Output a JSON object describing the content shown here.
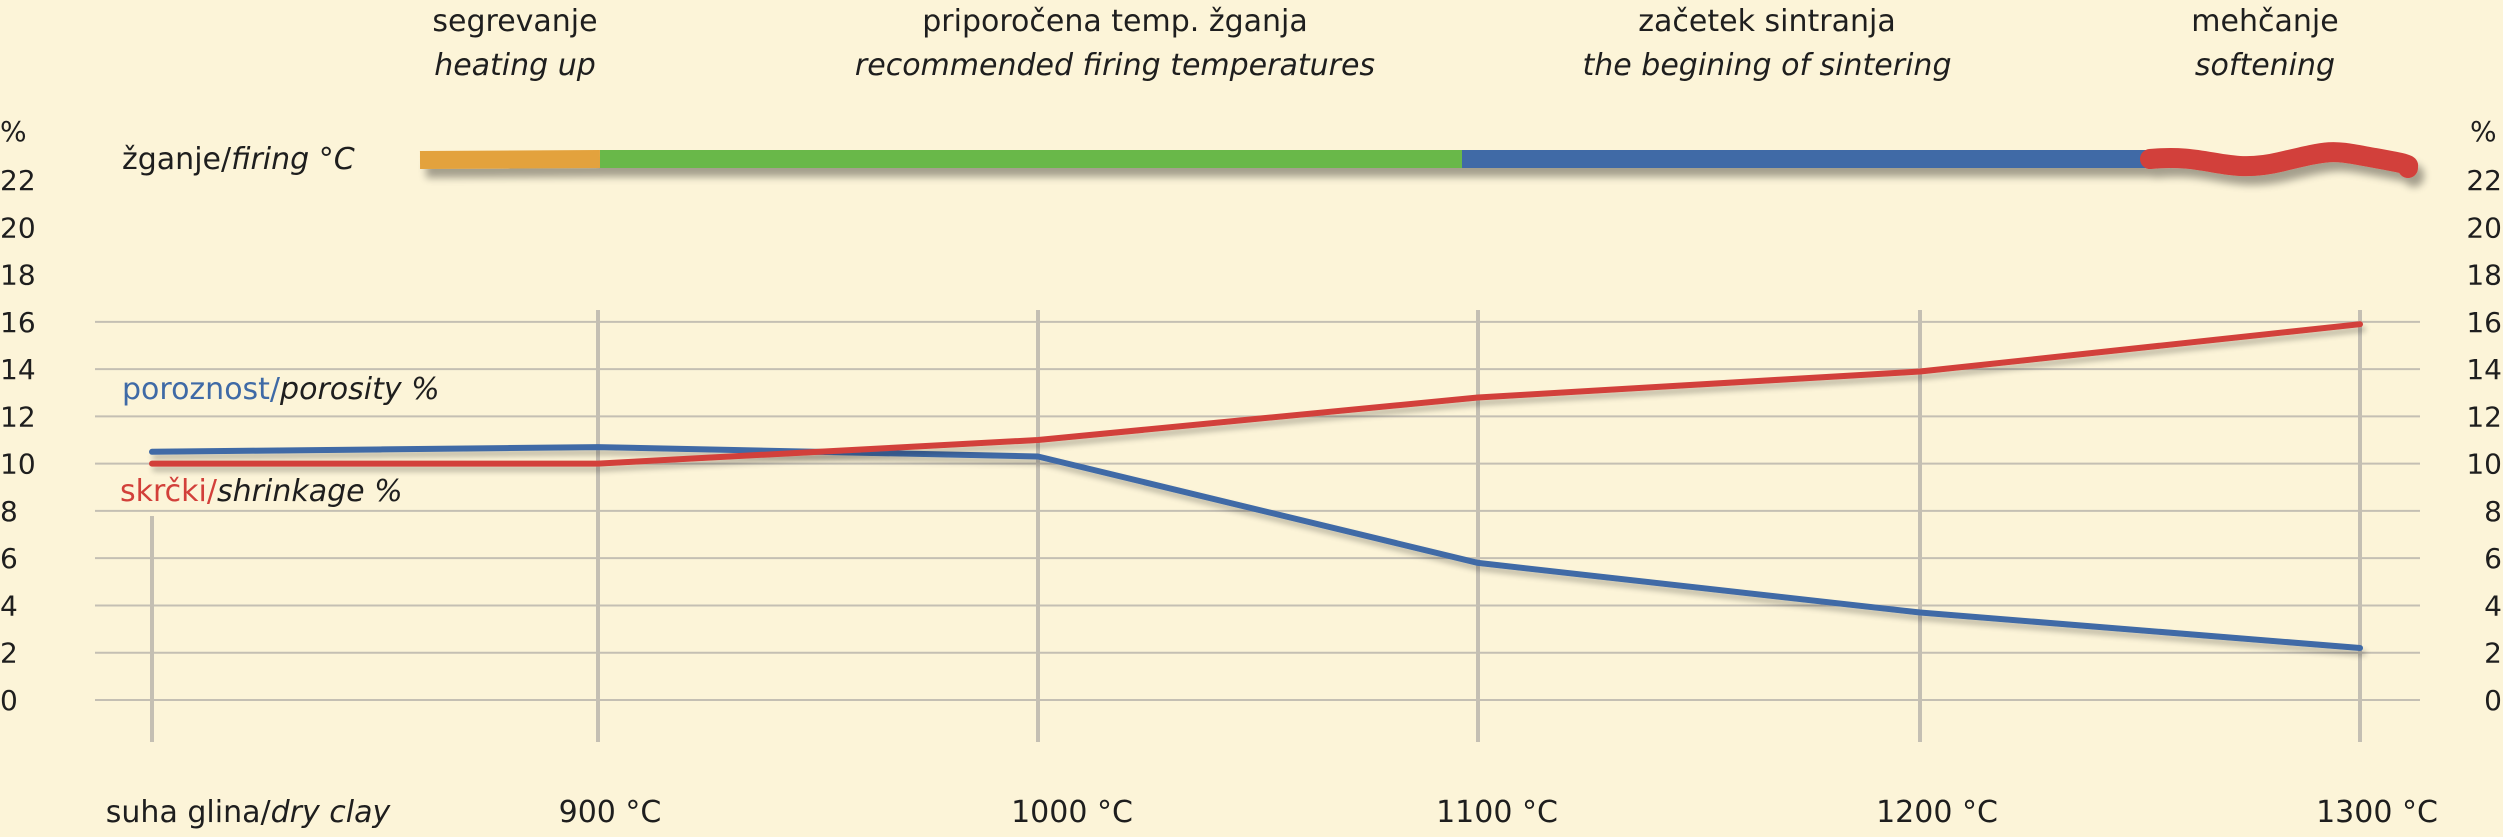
{
  "chart_data": {
    "type": "line",
    "title": "",
    "phases": [
      {
        "sl": "segrevanje",
        "en": "heating up",
        "color": "#e3a23d"
      },
      {
        "sl": "priporočena temp. žganja",
        "en": "recommended firing temperatures",
        "color": "#69b84a"
      },
      {
        "sl": "začetek sintranja",
        "en": "the begining of sintering",
        "color": "#3f6aa6"
      },
      {
        "sl": "mehčanje",
        "en": "softening",
        "color": "#d2403a"
      }
    ],
    "firing_label": {
      "sl": "žganje/",
      "en": "firing °C"
    },
    "y_unit": "%",
    "y_ticks": [
      "22",
      "20",
      "18",
      "16",
      "14",
      "12",
      "10",
      "8",
      "6",
      "4",
      "2",
      "0"
    ],
    "ylim": [
      0,
      22
    ],
    "categories": [
      "suha glina/dry clay",
      "900 °C",
      "1000 °C",
      "1100 °C",
      "1200 °C",
      "1300 °C"
    ],
    "x_first_label": {
      "sl": "suha glina/",
      "en": "dry clay"
    },
    "x_labels": [
      "900 °C",
      "1000 °C",
      "1100 °C",
      "1200 °C",
      "1300 °C"
    ],
    "series": [
      {
        "name": "porosity",
        "label_sl": "poroznost/",
        "label_en": "porosity %",
        "color": "#3f6aa6",
        "values": [
          10.5,
          10.7,
          10.3,
          5.8,
          3.7,
          2.2
        ]
      },
      {
        "name": "shrinkage",
        "label_sl": "skrčki/",
        "label_en": "shrinkage %",
        "color": "#d2403a",
        "values": [
          10.0,
          10.0,
          11.0,
          12.8,
          13.9,
          15.9
        ]
      }
    ]
  }
}
